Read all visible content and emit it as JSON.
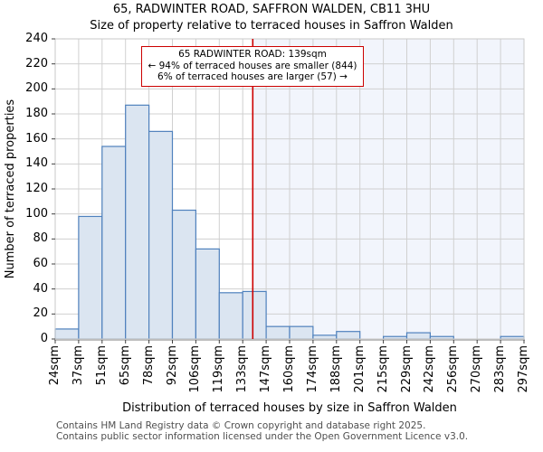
{
  "chart_data": {
    "type": "bar",
    "title": "65, RADWINTER ROAD, SAFFRON WALDEN, CB11 3HU",
    "subtitle": "Size of property relative to terraced houses in Saffron Walden",
    "xlabel": "Distribution of terraced houses by size in Saffron Walden",
    "ylabel": "Number of terraced properties",
    "bin_edges_sqm": [
      24,
      37,
      51,
      65,
      78,
      92,
      106,
      119,
      133,
      147,
      160,
      174,
      188,
      201,
      215,
      229,
      242,
      256,
      270,
      283,
      297
    ],
    "xtick_labels": [
      "24sqm",
      "37sqm",
      "51sqm",
      "65sqm",
      "78sqm",
      "92sqm",
      "106sqm",
      "119sqm",
      "133sqm",
      "147sqm",
      "160sqm",
      "174sqm",
      "188sqm",
      "201sqm",
      "215sqm",
      "229sqm",
      "242sqm",
      "256sqm",
      "270sqm",
      "283sqm",
      "297sqm"
    ],
    "values": [
      8,
      98,
      154,
      187,
      166,
      103,
      72,
      37,
      38,
      10,
      10,
      3,
      6,
      0,
      2,
      5,
      2,
      0,
      0,
      2
    ],
    "ylim": [
      0,
      240
    ],
    "ytick_step": 20,
    "ytick_labels": [
      "0",
      "20",
      "40",
      "60",
      "80",
      "100",
      "120",
      "140",
      "160",
      "180",
      "200",
      "220",
      "240"
    ],
    "grid": true,
    "legend": null,
    "marker": {
      "value_sqm": 139,
      "annotation_line1": "65 RADWINTER ROAD: 139sqm",
      "annotation_line2": "← 94% of terraced houses are smaller (844)",
      "annotation_line3": "6% of terraced houses are larger (57) →",
      "smaller_pct": 94,
      "smaller_count": 844,
      "larger_pct": 6,
      "larger_count": 57
    },
    "colors": {
      "bar_fill": "#dbe5f1",
      "bar_edge": "#4f81bd",
      "marker_line": "#cc0000",
      "annotation_border": "#cc0000",
      "larger_region_fill": "#f2f5fc",
      "grid": "#d0d0d0",
      "plot_border": "#c9c9c9",
      "axis_line": "#bdbdbd",
      "tick_mark": "#404040"
    }
  },
  "footer": [
    "Contains HM Land Registry data © Crown copyright and database right 2025.",
    "Contains public sector information licensed under the Open Government Licence v3.0."
  ]
}
